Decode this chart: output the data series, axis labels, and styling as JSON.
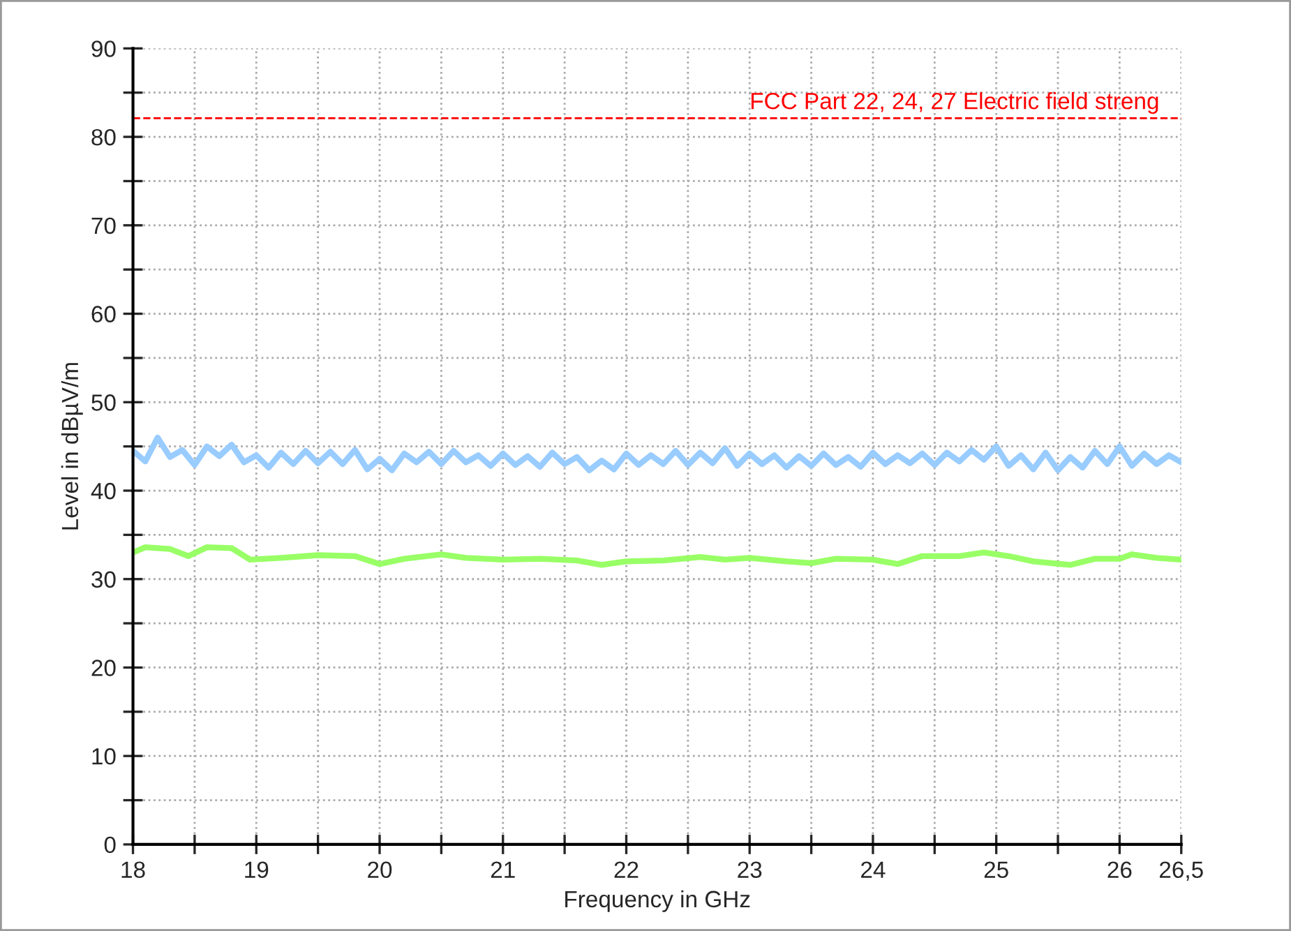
{
  "chart_data": {
    "type": "line",
    "xlabel": "Frequency in GHz",
    "ylabel": "Level in dBµV/m",
    "xlim": [
      18,
      26.5
    ],
    "xticks": [
      18,
      {
        "value": 18.5,
        "label": null
      },
      19,
      {
        "value": 19.5,
        "label": null
      },
      20,
      {
        "value": 20.5,
        "label": null
      },
      21,
      {
        "value": 21.5,
        "label": null
      },
      22,
      {
        "value": 22.5,
        "label": null
      },
      23,
      {
        "value": 23.5,
        "label": null
      },
      24,
      {
        "value": 24.5,
        "label": null
      },
      25,
      {
        "value": 25.5,
        "label": null
      },
      26,
      {
        "value": 26.5,
        "label": "26,5"
      }
    ],
    "ylim": [
      0,
      90
    ],
    "yticks": [
      0,
      {
        "value": 5,
        "label": null
      },
      10,
      {
        "value": 15,
        "label": null
      },
      20,
      {
        "value": 25,
        "label": null
      },
      30,
      {
        "value": 35,
        "label": null
      },
      40,
      {
        "value": 45,
        "label": null
      },
      50,
      {
        "value": 55,
        "label": null
      },
      60,
      {
        "value": 65,
        "label": null
      },
      70,
      {
        "value": 75,
        "label": null
      },
      80,
      {
        "value": 85,
        "label": null
      },
      90
    ],
    "grid": true,
    "marker": "none",
    "line_style": "solid",
    "series": [
      {
        "color": "#99ccff",
        "x": [
          18.0,
          18.1,
          18.2,
          18.3,
          18.4,
          18.5,
          18.6,
          18.7,
          18.8,
          18.9,
          19.0,
          19.1,
          19.2,
          19.3,
          19.4,
          19.5,
          19.6,
          19.7,
          19.8,
          19.9,
          20.0,
          20.1,
          20.2,
          20.3,
          20.4,
          20.5,
          20.6,
          20.7,
          20.8,
          20.9,
          21.0,
          21.1,
          21.2,
          21.3,
          21.4,
          21.5,
          21.6,
          21.7,
          21.8,
          21.9,
          22.0,
          22.1,
          22.2,
          22.3,
          22.4,
          22.5,
          22.6,
          22.7,
          22.8,
          22.9,
          23.0,
          23.1,
          23.2,
          23.3,
          23.4,
          23.5,
          23.6,
          23.7,
          23.8,
          23.9,
          24.0,
          24.1,
          24.2,
          24.3,
          24.4,
          24.5,
          24.6,
          24.7,
          24.8,
          24.9,
          25.0,
          25.1,
          25.2,
          25.3,
          25.4,
          25.5,
          25.6,
          25.7,
          25.8,
          25.9,
          26.0,
          26.1,
          26.2,
          26.3,
          26.4,
          26.5
        ],
        "values": [
          44.5,
          43.3,
          46.0,
          43.8,
          44.6,
          42.9,
          45.0,
          43.9,
          45.2,
          43.2,
          44.0,
          42.6,
          44.3,
          43.0,
          44.5,
          43.1,
          44.4,
          43.0,
          44.6,
          42.4,
          43.6,
          42.3,
          44.2,
          43.2,
          44.4,
          43.0,
          44.5,
          43.2,
          44.0,
          42.8,
          44.2,
          42.9,
          43.9,
          42.7,
          44.3,
          43.0,
          43.8,
          42.3,
          43.4,
          42.4,
          44.2,
          42.9,
          44.0,
          43.0,
          44.5,
          42.9,
          44.3,
          43.1,
          44.8,
          42.8,
          44.2,
          43.0,
          44.0,
          42.6,
          43.9,
          42.8,
          44.2,
          42.9,
          43.8,
          42.7,
          44.3,
          43.0,
          44.0,
          43.1,
          44.2,
          42.9,
          44.3,
          43.3,
          44.6,
          43.5,
          45.0,
          42.8,
          44.0,
          42.4,
          44.3,
          42.3,
          43.8,
          42.6,
          44.5,
          43.0,
          45.0,
          42.8,
          44.2,
          43.0,
          44.0,
          43.2
        ]
      },
      {
        "color": "#99ff66",
        "x": [
          18.0,
          18.1,
          18.3,
          18.45,
          18.6,
          18.8,
          18.95,
          19.2,
          19.5,
          19.8,
          20.0,
          20.2,
          20.5,
          20.7,
          21.0,
          21.3,
          21.6,
          21.8,
          22.0,
          22.3,
          22.6,
          22.8,
          23.0,
          23.3,
          23.5,
          23.7,
          24.0,
          24.2,
          24.4,
          24.7,
          24.9,
          25.1,
          25.3,
          25.6,
          25.8,
          26.0,
          26.1,
          26.3,
          26.5
        ],
        "values": [
          33.0,
          33.6,
          33.4,
          32.6,
          33.6,
          33.5,
          32.2,
          32.4,
          32.7,
          32.6,
          31.7,
          32.3,
          32.8,
          32.4,
          32.2,
          32.3,
          32.1,
          31.6,
          32.0,
          32.1,
          32.5,
          32.2,
          32.4,
          32.0,
          31.8,
          32.3,
          32.2,
          31.7,
          32.6,
          32.6,
          33.0,
          32.6,
          32.0,
          31.6,
          32.3,
          32.3,
          32.8,
          32.4,
          32.2
        ]
      }
    ],
    "ref_lines": [
      {
        "axis": "y",
        "value": 82.1,
        "label": "FCC Part 22, 24, 27 Electric field streng",
        "color": "#ff0000",
        "line_style": "dashed"
      }
    ]
  }
}
